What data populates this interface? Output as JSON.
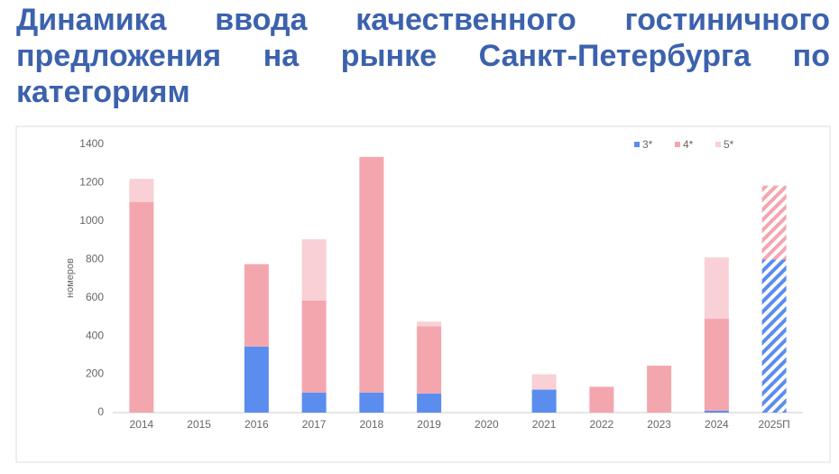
{
  "chart_data": {
    "type": "stacked_bar",
    "title": "Динамика ввода качественного гостиничного предложения на рынке Санкт-Петербурга по категориям",
    "y_label": "номеров",
    "categories": [
      "2014",
      "2015",
      "2016",
      "2017",
      "2018",
      "2019",
      "2020",
      "2021",
      "2022",
      "2023",
      "2024",
      "2025П"
    ],
    "hatched": [
      false,
      false,
      false,
      false,
      false,
      false,
      false,
      false,
      false,
      false,
      false,
      true
    ],
    "series": [
      {
        "name": "3*",
        "color": "#5b8def",
        "values": [
          0,
          0,
          345,
          105,
          105,
          100,
          0,
          120,
          0,
          0,
          10,
          800
        ]
      },
      {
        "name": "4*",
        "color": "#f4a6ae",
        "values": [
          1100,
          0,
          430,
          480,
          1230,
          350,
          0,
          0,
          135,
          245,
          480,
          385
        ]
      },
      {
        "name": "5*",
        "color": "#f9d0d5",
        "values": [
          120,
          0,
          0,
          320,
          0,
          25,
          0,
          80,
          0,
          0,
          320,
          0
        ]
      }
    ],
    "ylim": [
      0,
      1400
    ],
    "yticks": [
      0,
      200,
      400,
      600,
      800,
      1000,
      1200,
      1400
    ],
    "legend": "top-right"
  }
}
